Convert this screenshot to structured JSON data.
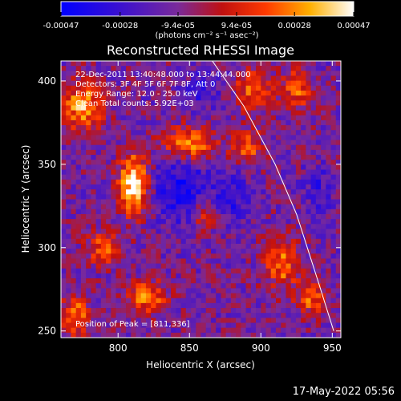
{
  "chart_data": {
    "type": "heatmap",
    "title": "Reconstructed RHESSI Image",
    "xlabel": "Heliocentric X (arcsec)",
    "ylabel": "Heliocentric Y (arcsec)",
    "xlim": [
      760,
      956
    ],
    "ylim": [
      246,
      412
    ],
    "x_ticks": [
      800,
      850,
      900,
      950
    ],
    "y_ticks": [
      250,
      300,
      350,
      400
    ],
    "colorbar": {
      "label": "(photons cm⁻² s⁻¹ asec⁻²)",
      "range": [
        -0.00047,
        0.00047
      ],
      "tick_labels": [
        "-0.00047",
        "-0.00028",
        "-9.4e-05",
        "9.4e-05",
        "0.00028",
        "0.00047"
      ],
      "tick_values": [
        -0.00047,
        -0.00028,
        -9.4e-05,
        9.4e-05,
        0.00028,
        0.00047
      ]
    },
    "annotations": [
      "22-Dec-2011 13:40:48.000 to 13:44:44.000",
      "Detectors: 3F 4F 5F 6F 7F 8F, Att 0",
      "Energy Range: 12.0 - 25.0 keV",
      "Clean     Total counts: 5.92E+03"
    ],
    "peak_label": "Position of Peak = [811,336]",
    "peak": [
      811,
      336
    ],
    "limb_curve": [
      [
        866,
        412
      ],
      [
        888,
        385
      ],
      [
        910,
        350
      ],
      [
        925,
        320
      ],
      [
        940,
        280
      ],
      [
        951,
        250
      ]
    ],
    "hot_spots": [
      {
        "x": 811,
        "y": 338,
        "amp": 1.0,
        "sx": 10,
        "sy": 18
      },
      {
        "x": 775,
        "y": 385,
        "amp": 0.75,
        "sx": 14,
        "sy": 14
      },
      {
        "x": 850,
        "y": 362,
        "amp": 0.7,
        "sx": 18,
        "sy": 10
      },
      {
        "x": 895,
        "y": 395,
        "amp": 0.6,
        "sx": 12,
        "sy": 12
      },
      {
        "x": 925,
        "y": 395,
        "amp": 0.55,
        "sx": 10,
        "sy": 12
      },
      {
        "x": 790,
        "y": 300,
        "amp": 0.55,
        "sx": 12,
        "sy": 10
      },
      {
        "x": 820,
        "y": 270,
        "amp": 0.6,
        "sx": 14,
        "sy": 10
      },
      {
        "x": 890,
        "y": 360,
        "amp": 0.55,
        "sx": 10,
        "sy": 10
      },
      {
        "x": 915,
        "y": 290,
        "amp": 0.6,
        "sx": 12,
        "sy": 14
      },
      {
        "x": 935,
        "y": 270,
        "amp": 0.55,
        "sx": 10,
        "sy": 10
      },
      {
        "x": 860,
        "y": 320,
        "amp": 0.4,
        "sx": 10,
        "sy": 10
      },
      {
        "x": 770,
        "y": 260,
        "amp": 0.6,
        "sx": 10,
        "sy": 12
      }
    ],
    "cold_spots": [
      {
        "x": 845,
        "y": 335,
        "amp": 0.9,
        "sx": 20,
        "sy": 20
      },
      {
        "x": 880,
        "y": 330,
        "amp": 0.6,
        "sx": 14,
        "sy": 14
      },
      {
        "x": 860,
        "y": 395,
        "amp": 0.5,
        "sx": 12,
        "sy": 12
      },
      {
        "x": 940,
        "y": 335,
        "amp": 0.5,
        "sx": 10,
        "sy": 14
      }
    ]
  },
  "footer": {
    "timestamp": "17-May-2022 05:56"
  }
}
